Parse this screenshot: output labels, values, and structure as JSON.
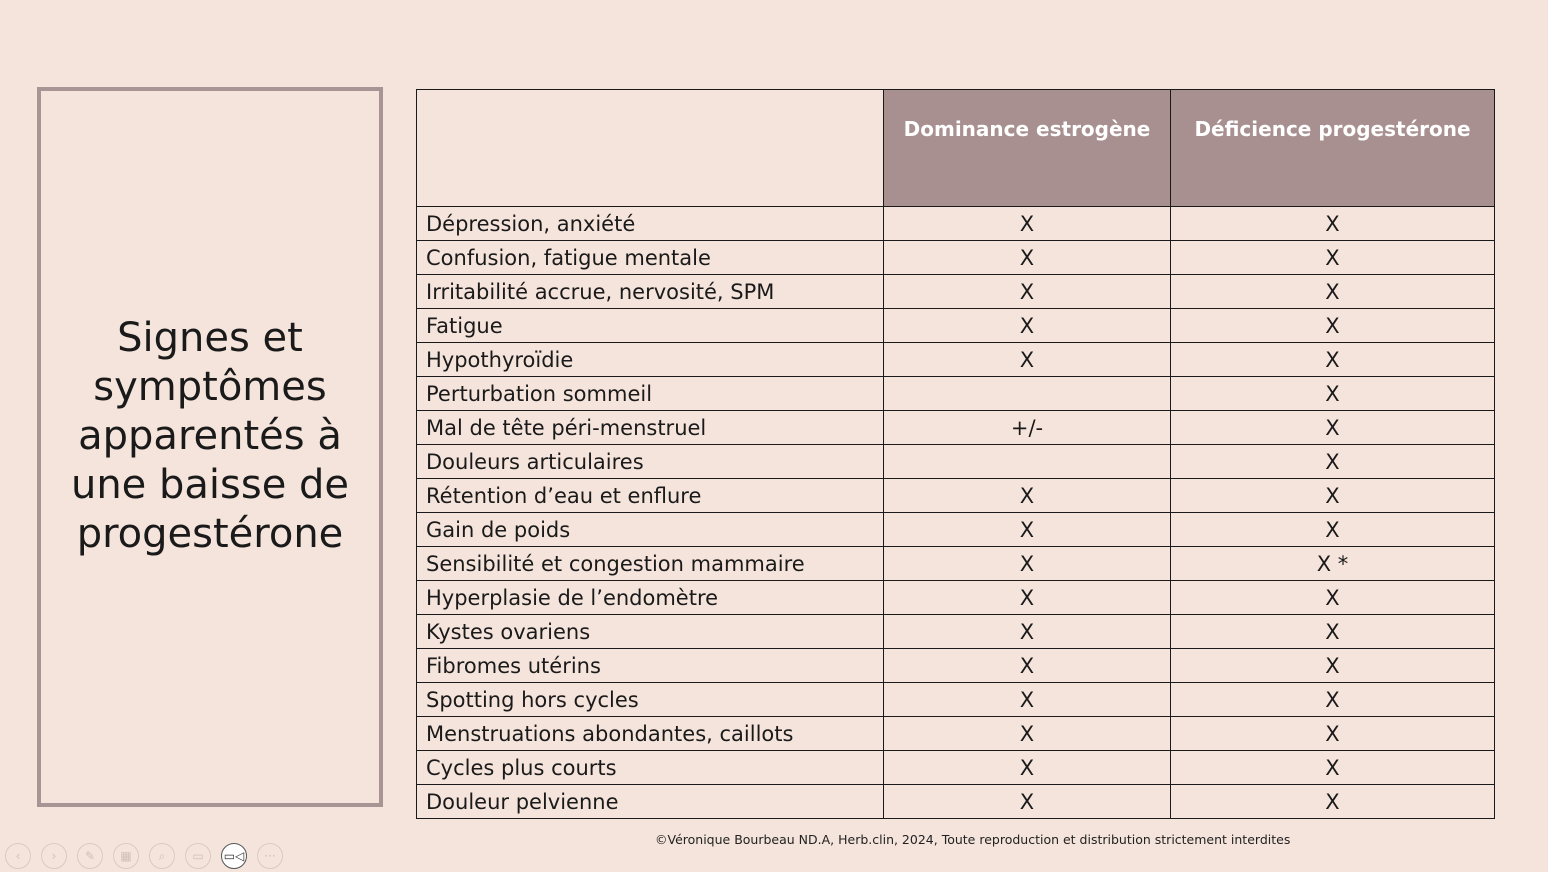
{
  "title": "Signes et symptômes apparentés à une baisse de progestérone",
  "table": {
    "headers": [
      "",
      "Dominance estrogène",
      "Déficience progestérone"
    ],
    "rows": [
      {
        "symptom": "Dépression, anxiété",
        "estrogen": "X",
        "progesterone": "X"
      },
      {
        "symptom": "Confusion, fatigue mentale",
        "estrogen": "X",
        "progesterone": "X"
      },
      {
        "symptom": "Irritabilité accrue, nervosité, SPM",
        "estrogen": "X",
        "progesterone": "X"
      },
      {
        "symptom": "Fatigue",
        "estrogen": "X",
        "progesterone": "X"
      },
      {
        "symptom": "Hypothyroïdie",
        "estrogen": "X",
        "progesterone": "X"
      },
      {
        "symptom": "Perturbation sommeil",
        "estrogen": "",
        "progesterone": "X"
      },
      {
        "symptom": "Mal de tête péri-menstruel",
        "estrogen": "+/-",
        "progesterone": "X"
      },
      {
        "symptom": "Douleurs articulaires",
        "estrogen": "",
        "progesterone": "X"
      },
      {
        "symptom": "Rétention d’eau et enflure",
        "estrogen": "X",
        "progesterone": "X"
      },
      {
        "symptom": "Gain de poids",
        "estrogen": "X",
        "progesterone": "X"
      },
      {
        "symptom": "Sensibilité et congestion mammaire",
        "estrogen": "X",
        "progesterone": "X *"
      },
      {
        "symptom": "Hyperplasie de l’endomètre",
        "estrogen": "X",
        "progesterone": "X"
      },
      {
        "symptom": "Kystes ovariens",
        "estrogen": "X",
        "progesterone": "X"
      },
      {
        "symptom": "Fibromes utérins",
        "estrogen": "X",
        "progesterone": "X"
      },
      {
        "symptom": "Spotting hors cycles",
        "estrogen": "X",
        "progesterone": "X"
      },
      {
        "symptom": "Menstruations abondantes, caillots",
        "estrogen": "X",
        "progesterone": "X"
      },
      {
        "symptom": "Cycles plus courts",
        "estrogen": "X",
        "progesterone": "X"
      },
      {
        "symptom": "Douleur pelvienne",
        "estrogen": "X",
        "progesterone": "X"
      }
    ]
  },
  "footer": "©Véronique Bourbeau ND.A, Herb.clin, 2024, Toute reproduction et distribution strictement interdites",
  "controls": [
    {
      "name": "previous-slide-button",
      "icon": "‹"
    },
    {
      "name": "next-slide-button",
      "icon": "›"
    },
    {
      "name": "pen-tool-button",
      "icon": "✎"
    },
    {
      "name": "see-all-slides-button",
      "icon": "▦"
    },
    {
      "name": "zoom-button",
      "icon": "⌕"
    },
    {
      "name": "subtitles-button",
      "icon": "▭"
    },
    {
      "name": "camera-button",
      "icon": "▭◁"
    },
    {
      "name": "more-options-button",
      "icon": "···"
    }
  ],
  "colors": {
    "background": "#f5e4dc",
    "accent": "#a89090",
    "header_text": "#ffffff"
  }
}
